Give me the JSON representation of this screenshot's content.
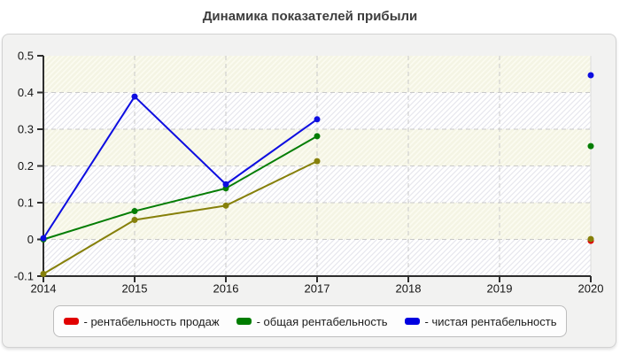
{
  "title": "Динамика показателей прибыли",
  "chart_data": {
    "type": "line",
    "title": "Динамика показателей прибыли",
    "xlabel": "",
    "ylabel": "",
    "xlim": [
      2014,
      2020
    ],
    "ylim": [
      -0.1,
      0.5
    ],
    "x_ticks": [
      2014,
      2015,
      2016,
      2017,
      2018,
      2019,
      2020
    ],
    "y_ticks": [
      -0.1,
      0,
      0.1,
      0.2,
      0.3,
      0.4,
      0.5
    ],
    "grid": "dashed",
    "legend_position": "bottom",
    "colors": {
      "axis": "#2e2e2e",
      "gridline": "#c9c9c9",
      "band_cream_base": "#fbfbf0",
      "band_cream_stripe": "#f4f4e4",
      "band_white_base": "#ffffff",
      "band_white_stripe": "#e7e7ee",
      "plot_right_edge": "#dcdcdc"
    },
    "series": [
      {
        "name": "рентабельность продаж",
        "legend_label": "- рентабельность продаж",
        "legend_color": "#e10000",
        "line_color": "#86800a",
        "x": [
          2014,
          2015,
          2016,
          2017,
          2020
        ],
        "values": [
          -0.094,
          0.053,
          0.092,
          0.213,
          0.001
        ]
      },
      {
        "name": "общая рентабельность",
        "legend_label": "- общая рентабельность",
        "legend_color": "#007d00",
        "line_color": "#047d04",
        "x": [
          2014,
          2015,
          2016,
          2017,
          2020
        ],
        "values": [
          0.0,
          0.077,
          0.139,
          0.281,
          0.254
        ]
      },
      {
        "name": "чистая рентабельность",
        "legend_label": "- чистая рентабельность",
        "legend_color": "#0000e0",
        "line_color": "#0d0de0",
        "x": [
          2014,
          2015,
          2016,
          2017,
          2020
        ],
        "values": [
          0.003,
          0.389,
          0.15,
          0.327,
          0.447
        ]
      }
    ],
    "underlying_points": [
      {
        "color": "#e10000",
        "x": 2020,
        "value": -0.004
      }
    ]
  }
}
